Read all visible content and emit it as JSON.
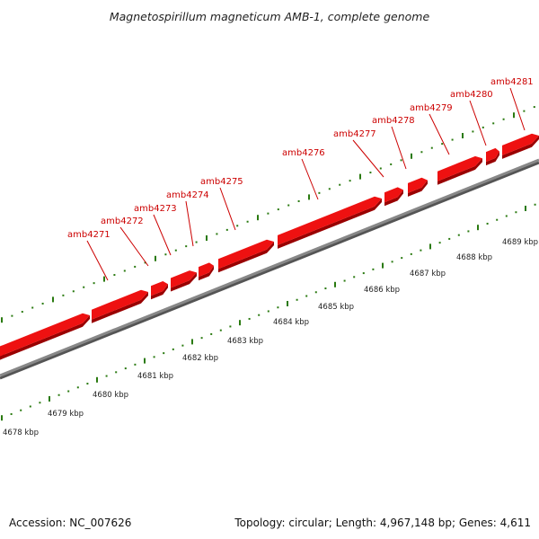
{
  "title": "Magnetospirillum magneticum AMB-1, complete genome",
  "footer": {
    "accession": "Accession: NC_007626",
    "topology": "Topology: circular; Length: 4,967,148 bp; Genes: 4,611"
  },
  "genes": [
    {
      "label": "amb4271"
    },
    {
      "label": "amb4272"
    },
    {
      "label": "amb4273"
    },
    {
      "label": "amb4274"
    },
    {
      "label": "amb4275"
    },
    {
      "label": "amb4276"
    },
    {
      "label": "amb4277"
    },
    {
      "label": "amb4278"
    },
    {
      "label": "amb4279"
    },
    {
      "label": "amb4280"
    },
    {
      "label": "amb4281"
    }
  ],
  "kbp_labels": [
    "4678 kbp",
    "4679 kbp",
    "4680 kbp",
    "4681 kbp",
    "4682 kbp",
    "4683 kbp",
    "4684 kbp",
    "4685 kbp",
    "4686 kbp",
    "4687 kbp",
    "4688 kbp",
    "4689 kbp"
  ],
  "colors": {
    "gene": "#ee1111",
    "gene_dark": "#990000",
    "backbone": "#888888",
    "ticks": "#2a7a10",
    "label": "#cc0000"
  }
}
